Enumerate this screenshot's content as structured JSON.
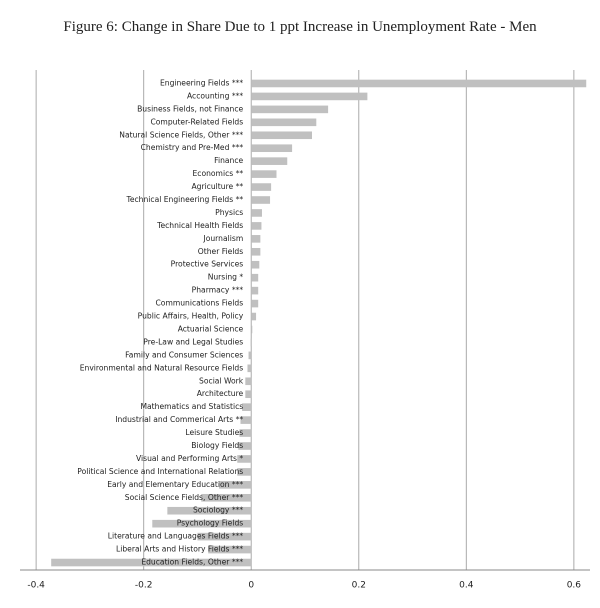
{
  "chart_data": {
    "type": "hbar",
    "title": "Figure 6: Change in Share Due to 1 ppt Increase in Unemployment Rate - Men",
    "categories": [
      "Engineering Fields ***",
      "Accounting ***",
      "Business Fields, not Finance",
      "Computer-Related Fields",
      "Natural Science Fields, Other ***",
      "Chemistry and Pre-Med ***",
      "Finance",
      "Economics **",
      "Agriculture **",
      "Technical Engineering Fields **",
      "Physics",
      "Technical Health Fields",
      "Journalism",
      "Other Fields",
      "Protective Services",
      "Nursing *",
      "Pharmacy ***",
      "Communications Fields",
      "Public Affairs, Health, Policy",
      "Actuarial Science",
      "Pre-Law and Legal Studies",
      "Family and Consumer Sciences",
      "Environmental and Natural Resource Fields",
      "Social Work",
      "Architecture",
      "Mathematics and Statistics",
      "Industrial and Commerical Arts **",
      "Leisure Studies",
      "Biology Fields",
      "Visual and Performing Arts *",
      "Political Science and International Relations",
      "Early and Elementary Education ***",
      "Social Science Fields, Other ***",
      "Sociology ***",
      "Psychology Fields",
      "Literature and Languages Fields ***",
      "Liberal Arts and History Fields ***",
      "Education Fields, Other ***"
    ],
    "values": [
      0.623,
      0.216,
      0.143,
      0.121,
      0.113,
      0.076,
      0.067,
      0.047,
      0.037,
      0.035,
      0.02,
      0.019,
      0.017,
      0.017,
      0.015,
      0.013,
      0.013,
      0.013,
      0.009,
      0.002,
      -0.001,
      -0.005,
      -0.007,
      -0.011,
      -0.011,
      -0.017,
      -0.02,
      -0.022,
      -0.024,
      -0.026,
      -0.026,
      -0.06,
      -0.093,
      -0.156,
      -0.184,
      -0.1,
      -0.08,
      -0.372
    ],
    "color": "#c0c0c0",
    "xlim": [
      -0.43,
      0.63
    ],
    "xticks": [
      -0.4,
      -0.2,
      0,
      0.2,
      0.4,
      0.6
    ],
    "grid": true
  }
}
